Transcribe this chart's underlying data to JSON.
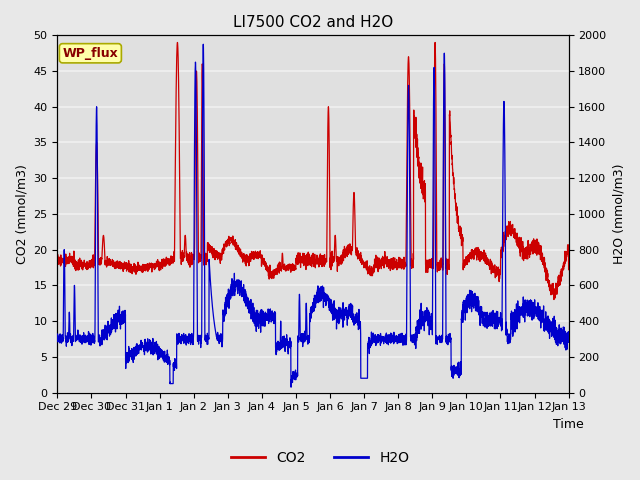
{
  "title": "LI7500 CO2 and H2O",
  "ylabel_left": "CO2 (mmol/m3)",
  "ylabel_right": "H2O (mmol/m3)",
  "xlabel": "Time",
  "ylim_left": [
    0,
    50
  ],
  "ylim_right": [
    0,
    2000
  ],
  "yticks_left": [
    0,
    5,
    10,
    15,
    20,
    25,
    30,
    35,
    40,
    45,
    50
  ],
  "yticks_right": [
    0,
    200,
    400,
    600,
    800,
    1000,
    1200,
    1400,
    1600,
    1800,
    2000
  ],
  "xtick_labels": [
    "Dec 29",
    "Dec 30",
    "Dec 31",
    "Jan 1",
    "Jan 2",
    "Jan 3",
    "Jan 4",
    "Jan 5",
    "Jan 6",
    "Jan 7",
    "Jan 8",
    "Jan 9",
    "Jan 10",
    "Jan 11",
    "Jan 12",
    "Jan 13"
  ],
  "co2_color": "#cc0000",
  "h2o_color": "#0000cc",
  "fig_bg_color": "#e8e8e8",
  "plot_bg_color": "#e0e0e0",
  "grid_color": "#f0f0f0",
  "wp_flux_text": "WP_flux",
  "wp_flux_bg": "#ffffaa",
  "wp_flux_border": "#aaaa00",
  "wp_flux_text_color": "#880000",
  "legend_co2": "CO2",
  "legend_h2o": "H2O",
  "title_fontsize": 11,
  "label_fontsize": 9,
  "tick_fontsize": 8,
  "legend_fontsize": 10
}
